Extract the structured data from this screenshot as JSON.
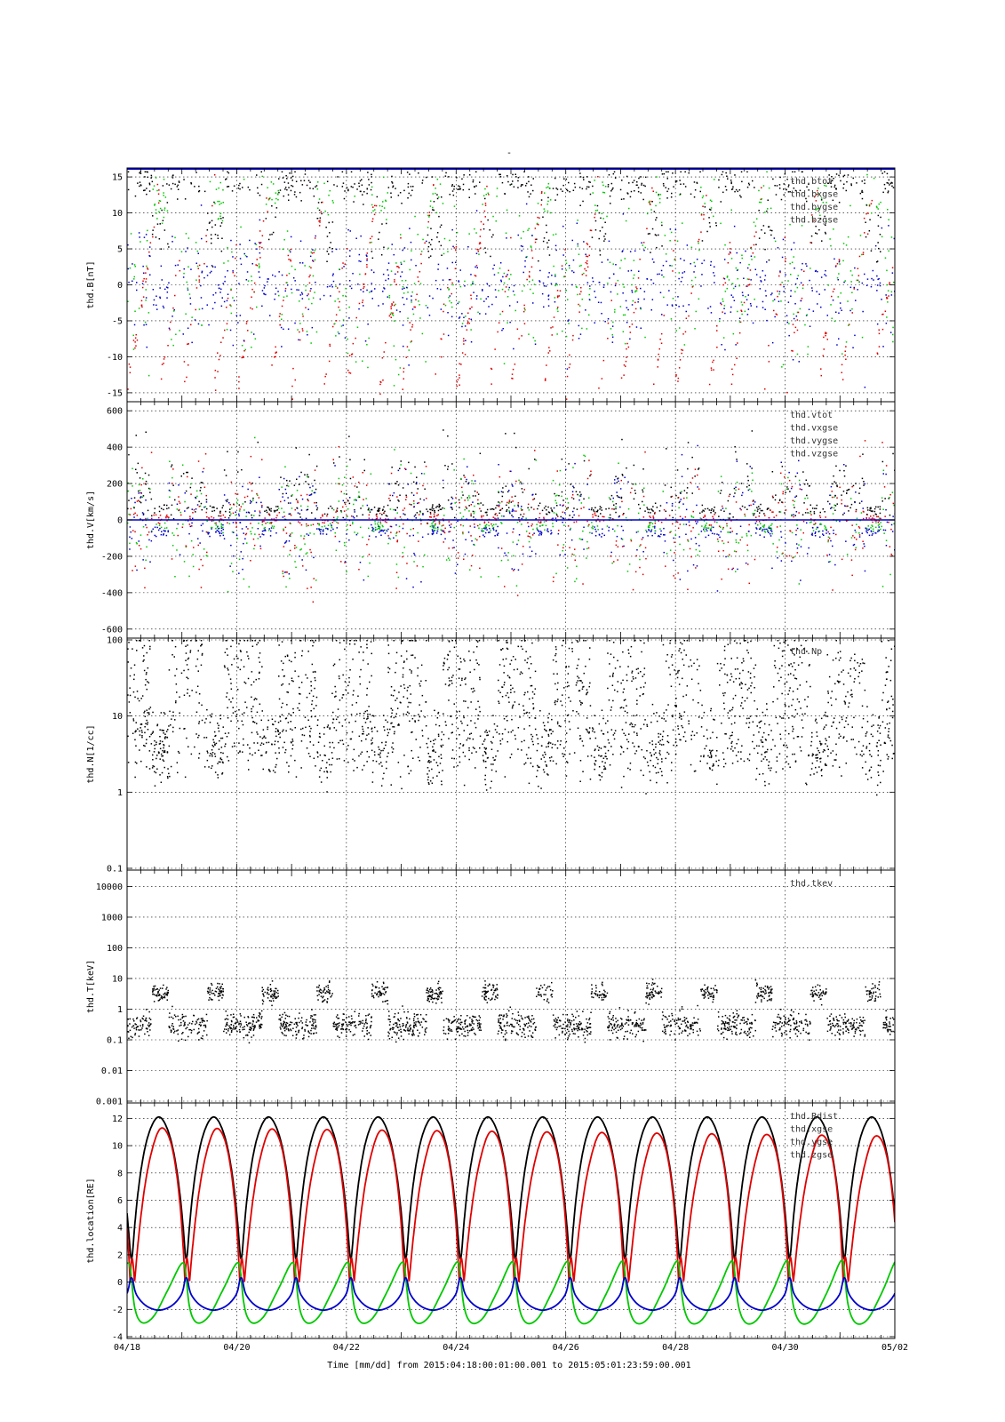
{
  "figure": {
    "top_mark": "-",
    "footer_text": "Time [mm/dd]  from 2015:04:18:00:01:00.001  to  2015:05:01:23:59:00.001"
  },
  "colors": {
    "black": "#000000",
    "red": "#e00000",
    "green": "#00c800",
    "blue": "#0000cc"
  },
  "chart_data": [
    {
      "type": "scatter",
      "ylabel": "thd.B[nT]",
      "yscale": "linear",
      "ylim": [
        -16,
        16
      ],
      "yticks": [
        15,
        10,
        5,
        0,
        -5,
        -10,
        -15
      ],
      "grid": true,
      "legend_position": "top-right",
      "series": [
        {
          "name": "thd.btot",
          "color": "#000000"
        },
        {
          "name": "thd.bxgse",
          "color": "#e00000"
        },
        {
          "name": "thd.bygse",
          "color": "#00c800"
        },
        {
          "name": "thd.bzgse",
          "color": "#0000cc"
        }
      ]
    },
    {
      "type": "scatter",
      "ylabel": "thd.V[km/s]",
      "yscale": "linear",
      "ylim": [
        -640,
        640
      ],
      "yticks": [
        600,
        400,
        200,
        0,
        -200,
        -400,
        -600
      ],
      "grid": true,
      "legend_position": "top-right",
      "series": [
        {
          "name": "thd.vtot",
          "color": "#000000"
        },
        {
          "name": "thd.vxgse",
          "color": "#e00000"
        },
        {
          "name": "thd.vygse",
          "color": "#00c800"
        },
        {
          "name": "thd.vzgse",
          "color": "#0000cc"
        }
      ]
    },
    {
      "type": "scatter",
      "ylabel": "thd.N[1/cc]",
      "yscale": "log",
      "ylim": [
        0.1,
        100
      ],
      "yticks": [
        100,
        10,
        1,
        0.1
      ],
      "ytick_labels": [
        "100",
        "10",
        "1",
        "0.1"
      ],
      "grid": true,
      "legend_position": "top-right",
      "series": [
        {
          "name": "thd.Np",
          "color": "#000000"
        }
      ]
    },
    {
      "type": "scatter",
      "ylabel": "thd.T[keV]",
      "yscale": "log",
      "ylim": [
        0.001,
        30000
      ],
      "yticks": [
        10000,
        1000,
        100,
        10,
        1,
        0.1,
        0.01,
        0.001
      ],
      "ytick_labels": [
        "10000",
        "1000",
        "100",
        "10",
        "1",
        "0.1",
        "0.01",
        "0.001"
      ],
      "grid": true,
      "legend_position": "top-right",
      "series": [
        {
          "name": "thd.tkev",
          "color": "#000000"
        }
      ]
    },
    {
      "type": "line",
      "ylabel": "thd.location[RE]",
      "yscale": "linear",
      "ylim": [
        -4,
        13
      ],
      "yticks": [
        12,
        10,
        8,
        6,
        4,
        2,
        0,
        -2,
        -4
      ],
      "grid": true,
      "legend_position": "top-right",
      "orbit_period_days": 1.0,
      "apogee_re": 12.1,
      "perigee_re": 1.7,
      "series": [
        {
          "name": "thd.Rdist",
          "color": "#000000"
        },
        {
          "name": "thd.xgse",
          "color": "#e00000"
        },
        {
          "name": "thd.ygse",
          "color": "#00c800"
        },
        {
          "name": "thd.zgse",
          "color": "#0000cc"
        }
      ]
    }
  ],
  "x_axis": {
    "type": "date",
    "label": "Time [mm/dd]",
    "range": [
      "2015-04-18",
      "2015-05-02"
    ],
    "tick_labels": [
      "04/18",
      "04/20",
      "04/22",
      "04/24",
      "04/26",
      "04/28",
      "04/30",
      "05/02"
    ]
  }
}
